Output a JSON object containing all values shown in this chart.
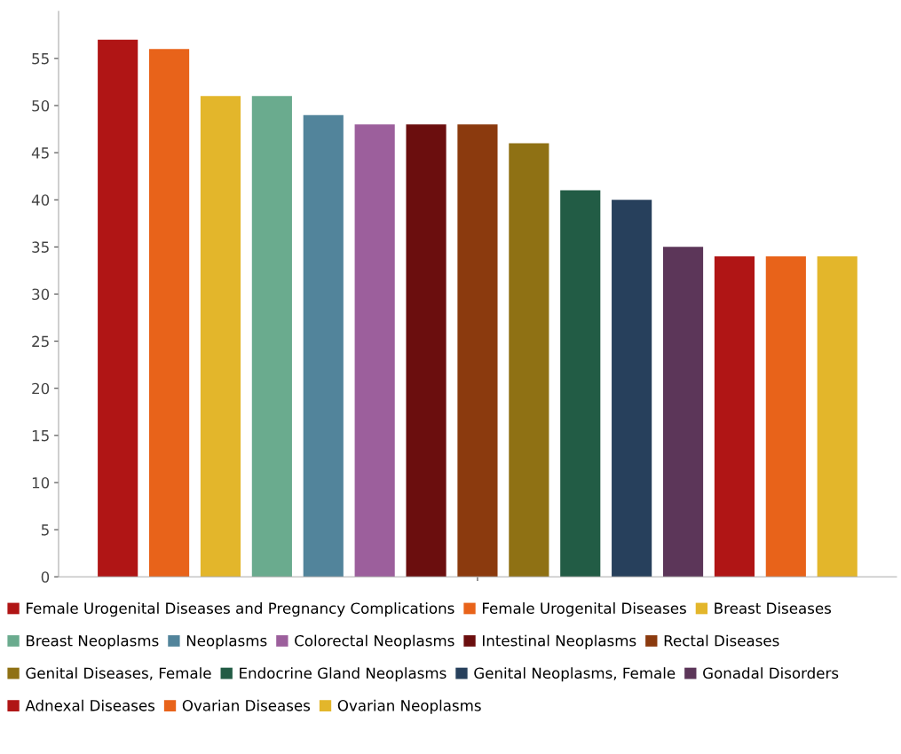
{
  "chart_data": {
    "type": "bar",
    "categories": [
      null
    ],
    "series": [
      {
        "name": "Female Urogenital Diseases and Pregnancy Complications",
        "color": "#b01515",
        "values": [
          57
        ]
      },
      {
        "name": "Female Urogenital Diseases",
        "color": "#e8631a",
        "values": [
          56
        ]
      },
      {
        "name": "Breast Diseases",
        "color": "#e3b62b",
        "values": [
          51
        ]
      },
      {
        "name": "Breast Neoplasms",
        "color": "#6aab8e",
        "values": [
          51
        ]
      },
      {
        "name": "Neoplasms",
        "color": "#52849b",
        "values": [
          49
        ]
      },
      {
        "name": "Colorectal Neoplasms",
        "color": "#9c5f9c",
        "values": [
          48
        ]
      },
      {
        "name": "Intestinal Neoplasms",
        "color": "#6b0e0e",
        "values": [
          48
        ]
      },
      {
        "name": "Rectal Diseases",
        "color": "#8b3a0e",
        "values": [
          48
        ]
      },
      {
        "name": "Genital Diseases, Female",
        "color": "#8f7114",
        "values": [
          46
        ]
      },
      {
        "name": "Endocrine Gland Neoplasms",
        "color": "#225c45",
        "values": [
          41
        ]
      },
      {
        "name": "Genital Neoplasms, Female",
        "color": "#27405c",
        "values": [
          40
        ]
      },
      {
        "name": "Gonadal Disorders",
        "color": "#5c3659",
        "values": [
          35
        ]
      },
      {
        "name": "Adnexal Diseases",
        "color": "#b01515",
        "values": [
          34
        ]
      },
      {
        "name": "Ovarian Diseases",
        "color": "#e8631a",
        "values": [
          34
        ]
      },
      {
        "name": "Ovarian Neoplasms",
        "color": "#e3b62b",
        "values": [
          34
        ]
      }
    ],
    "ylim": [
      0,
      60
    ],
    "yticks": [
      0,
      5,
      10,
      15,
      20,
      25,
      30,
      35,
      40,
      45,
      50,
      55
    ],
    "grid": false,
    "legend": "bottom"
  }
}
